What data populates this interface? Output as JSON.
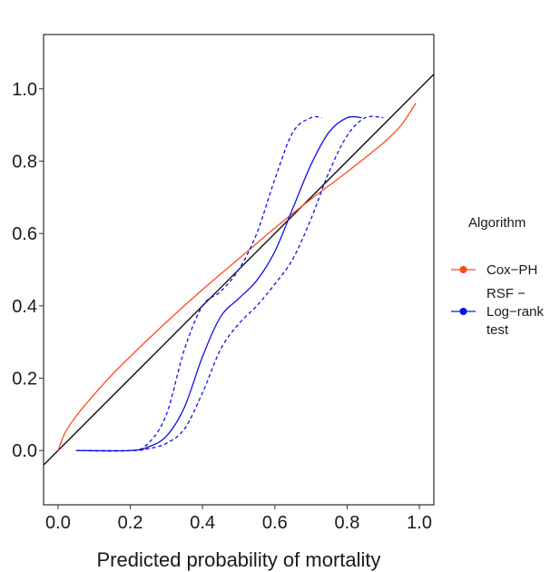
{
  "chart_data": {
    "type": "line",
    "title": "",
    "xlabel": "Predicted probability of mortality",
    "ylabel": "",
    "xlim": [
      -0.04,
      1.04
    ],
    "ylim": [
      -0.15,
      1.15
    ],
    "xticks": [
      0.0,
      0.2,
      0.4,
      0.6,
      0.8,
      1.0
    ],
    "yticks": [
      0.0,
      0.2,
      0.4,
      0.6,
      0.8,
      1.0
    ],
    "xtick_labels": [
      "0.0",
      "0.2",
      "0.4",
      "0.6",
      "0.8",
      "1.0"
    ],
    "ytick_labels": [
      "0.0",
      "0.2",
      "0.4",
      "0.6",
      "0.8",
      "1.0"
    ],
    "grid": false,
    "legend": {
      "title": "Algorithm",
      "position": "right",
      "entries": [
        {
          "label_lines": [
            "Cox−PH"
          ],
          "color": "#ff4a1c"
        },
        {
          "label_lines": [
            "RSF −",
            "Log−rank",
            "test"
          ],
          "color": "#1010e8"
        }
      ]
    },
    "reference_line": {
      "x": [
        -0.04,
        1.04
      ],
      "y": [
        -0.04,
        1.04
      ],
      "color": "#000000"
    },
    "series": [
      {
        "name": "Cox−PH",
        "color": "#ff4a1c",
        "style": "solid",
        "x": [
          0.0,
          0.02,
          0.05,
          0.1,
          0.15,
          0.2,
          0.3,
          0.4,
          0.5,
          0.6,
          0.7,
          0.8,
          0.9,
          0.95,
          0.99
        ],
        "y": [
          0.0,
          0.05,
          0.095,
          0.155,
          0.21,
          0.26,
          0.355,
          0.445,
          0.53,
          0.615,
          0.695,
          0.77,
          0.85,
          0.9,
          0.96
        ]
      },
      {
        "name": "RSF − Log−rank test",
        "color": "#1010e8",
        "style": "solid",
        "x": [
          0.05,
          0.2,
          0.25,
          0.3,
          0.35,
          0.4,
          0.45,
          0.5,
          0.55,
          0.6,
          0.65,
          0.7,
          0.75,
          0.8,
          0.84
        ],
        "y": [
          0.0,
          0.0,
          0.01,
          0.04,
          0.12,
          0.26,
          0.37,
          0.42,
          0.47,
          0.55,
          0.67,
          0.79,
          0.88,
          0.92,
          0.92
        ]
      },
      {
        "name": "RSF − Log−rank test (upper)",
        "color": "#1010e8",
        "style": "dashed",
        "x": [
          0.05,
          0.2,
          0.25,
          0.3,
          0.35,
          0.4,
          0.45,
          0.5,
          0.55,
          0.6,
          0.65,
          0.7,
          0.73
        ],
        "y": [
          0.0,
          0.0,
          0.02,
          0.1,
          0.28,
          0.4,
          0.44,
          0.5,
          0.6,
          0.75,
          0.88,
          0.92,
          0.92
        ]
      },
      {
        "name": "RSF − Log−rank test (lower)",
        "color": "#1010e8",
        "style": "dashed",
        "x": [
          0.05,
          0.2,
          0.25,
          0.3,
          0.35,
          0.4,
          0.45,
          0.5,
          0.55,
          0.6,
          0.65,
          0.7,
          0.75,
          0.8,
          0.85,
          0.9
        ],
        "y": [
          0.0,
          0.0,
          0.005,
          0.02,
          0.06,
          0.16,
          0.28,
          0.35,
          0.4,
          0.46,
          0.53,
          0.64,
          0.77,
          0.87,
          0.92,
          0.92
        ]
      }
    ]
  }
}
